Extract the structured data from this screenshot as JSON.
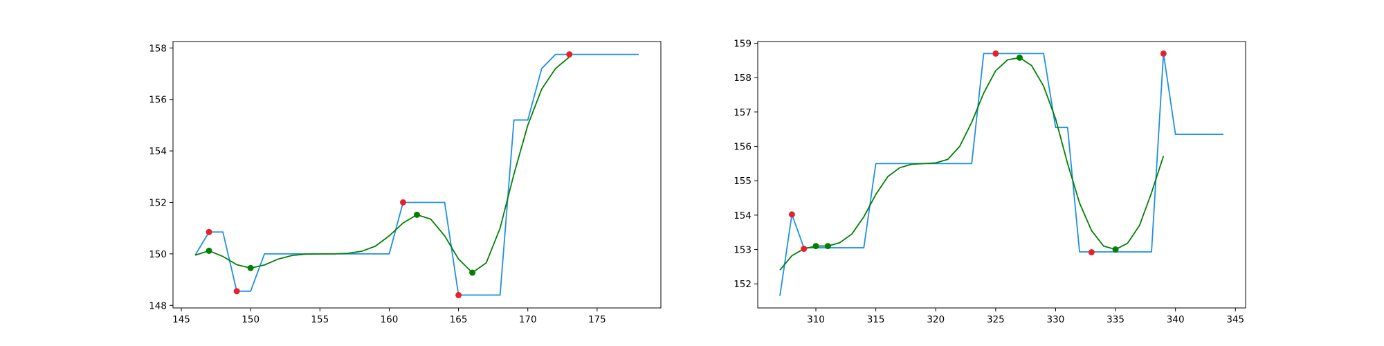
{
  "colors": {
    "raw_line": "#1f8fe6",
    "smooth_line": "#008000",
    "raw_marker": "#e8202a",
    "smooth_marker": "#008000",
    "axes": "#000000"
  },
  "chart_data": [
    {
      "type": "line",
      "title": "",
      "xlabel": "",
      "ylabel": "",
      "xlim": [
        144.4,
        179.6
      ],
      "ylim": [
        147.9,
        158.25
      ],
      "x_ticks": [
        145,
        150,
        155,
        160,
        165,
        170,
        175
      ],
      "y_ticks": [
        148,
        150,
        152,
        154,
        156,
        158
      ],
      "grid": false,
      "series": [
        {
          "kind": "step-line",
          "color": "#1f8fe6",
          "points": [
            [
              146,
              149.95
            ],
            [
              147,
              150.85
            ],
            [
              148,
              150.85
            ],
            [
              149,
              148.55
            ],
            [
              150,
              148.55
            ],
            [
              151,
              150.0
            ],
            [
              152,
              150.0
            ],
            [
              155,
              150.0
            ],
            [
              160,
              150.0
            ],
            [
              161,
              152.0
            ],
            [
              162,
              152.0
            ],
            [
              163,
              152.0
            ],
            [
              164,
              152.0
            ],
            [
              165,
              148.4
            ],
            [
              166,
              148.4
            ],
            [
              167,
              148.4
            ],
            [
              168,
              148.4
            ],
            [
              169,
              155.2
            ],
            [
              170,
              155.2
            ],
            [
              171,
              157.2
            ],
            [
              172,
              157.75
            ],
            [
              173,
              157.75
            ],
            [
              178,
              157.75
            ]
          ]
        },
        {
          "kind": "line",
          "color": "#008000",
          "points": [
            [
              146,
              149.95
            ],
            [
              147,
              150.12
            ],
            [
              148,
              149.9
            ],
            [
              149,
              149.58
            ],
            [
              150,
              149.45
            ],
            [
              151,
              149.57
            ],
            [
              152,
              149.8
            ],
            [
              153,
              149.94
            ],
            [
              154,
              149.99
            ],
            [
              155,
              150.0
            ],
            [
              156,
              150.0
            ],
            [
              157,
              150.02
            ],
            [
              158,
              150.1
            ],
            [
              159,
              150.3
            ],
            [
              160,
              150.7
            ],
            [
              161,
              151.2
            ],
            [
              162,
              151.52
            ],
            [
              163,
              151.35
            ],
            [
              164,
              150.7
            ],
            [
              165,
              149.8
            ],
            [
              166,
              149.27
            ],
            [
              167,
              149.65
            ],
            [
              168,
              151.0
            ],
            [
              169,
              153.1
            ],
            [
              170,
              155.0
            ],
            [
              171,
              156.4
            ],
            [
              172,
              157.2
            ],
            [
              173,
              157.65
            ]
          ]
        },
        {
          "kind": "scatter",
          "color": "#e8202a",
          "points": [
            [
              147,
              150.85
            ],
            [
              149,
              148.55
            ],
            [
              161,
              152.0
            ],
            [
              165,
              148.4
            ],
            [
              173,
              157.75
            ]
          ]
        },
        {
          "kind": "scatter",
          "color": "#008000",
          "points": [
            [
              147,
              150.12
            ],
            [
              150,
              149.45
            ],
            [
              162,
              151.52
            ],
            [
              166,
              149.27
            ]
          ]
        }
      ]
    },
    {
      "type": "line",
      "title": "",
      "xlabel": "",
      "ylabel": "",
      "xlim": [
        305.15,
        345.85
      ],
      "ylim": [
        151.3,
        159.05
      ],
      "x_ticks": [
        310,
        315,
        320,
        325,
        330,
        335,
        340,
        345
      ],
      "y_ticks": [
        152,
        153,
        154,
        155,
        156,
        157,
        158,
        159
      ],
      "grid": false,
      "series": [
        {
          "kind": "step-line",
          "color": "#1f8fe6",
          "points": [
            [
              307,
              151.65
            ],
            [
              308,
              154.02
            ],
            [
              309,
              153.05
            ],
            [
              310,
              153.05
            ],
            [
              314,
              153.05
            ],
            [
              315,
              155.5
            ],
            [
              316,
              155.5
            ],
            [
              323,
              155.5
            ],
            [
              324,
              158.7
            ],
            [
              326,
              158.7
            ],
            [
              329,
              158.7
            ],
            [
              330,
              156.55
            ],
            [
              331,
              156.55
            ],
            [
              332,
              152.93
            ],
            [
              333,
              152.93
            ],
            [
              338,
              152.93
            ],
            [
              339,
              158.7
            ],
            [
              340,
              156.35
            ],
            [
              344,
              156.35
            ]
          ]
        },
        {
          "kind": "line",
          "color": "#008000",
          "points": [
            [
              307,
              152.4
            ],
            [
              308,
              152.82
            ],
            [
              309,
              153.02
            ],
            [
              310,
              153.1
            ],
            [
              311,
              153.1
            ],
            [
              312,
              153.2
            ],
            [
              313,
              153.45
            ],
            [
              314,
              153.95
            ],
            [
              315,
              154.6
            ],
            [
              316,
              155.12
            ],
            [
              317,
              155.38
            ],
            [
              318,
              155.48
            ],
            [
              319,
              155.5
            ],
            [
              320,
              155.52
            ],
            [
              321,
              155.62
            ],
            [
              322,
              156.0
            ],
            [
              323,
              156.7
            ],
            [
              324,
              157.55
            ],
            [
              325,
              158.2
            ],
            [
              326,
              158.52
            ],
            [
              327,
              158.58
            ],
            [
              328,
              158.35
            ],
            [
              329,
              157.75
            ],
            [
              330,
              156.8
            ],
            [
              331,
              155.5
            ],
            [
              332,
              154.35
            ],
            [
              333,
              153.55
            ],
            [
              334,
              153.1
            ],
            [
              335,
              153.0
            ],
            [
              336,
              153.18
            ],
            [
              337,
              153.7
            ],
            [
              338,
              154.65
            ],
            [
              339,
              155.72
            ]
          ]
        },
        {
          "kind": "scatter",
          "color": "#e8202a",
          "points": [
            [
              308,
              154.02
            ],
            [
              309,
              153.02
            ],
            [
              325,
              158.7
            ],
            [
              333,
              152.92
            ],
            [
              339,
              158.7
            ]
          ]
        },
        {
          "kind": "scatter",
          "color": "#008000",
          "points": [
            [
              310,
              153.1
            ],
            [
              311,
              153.1
            ],
            [
              327,
              158.58
            ],
            [
              335,
              153.0
            ]
          ]
        }
      ]
    }
  ]
}
